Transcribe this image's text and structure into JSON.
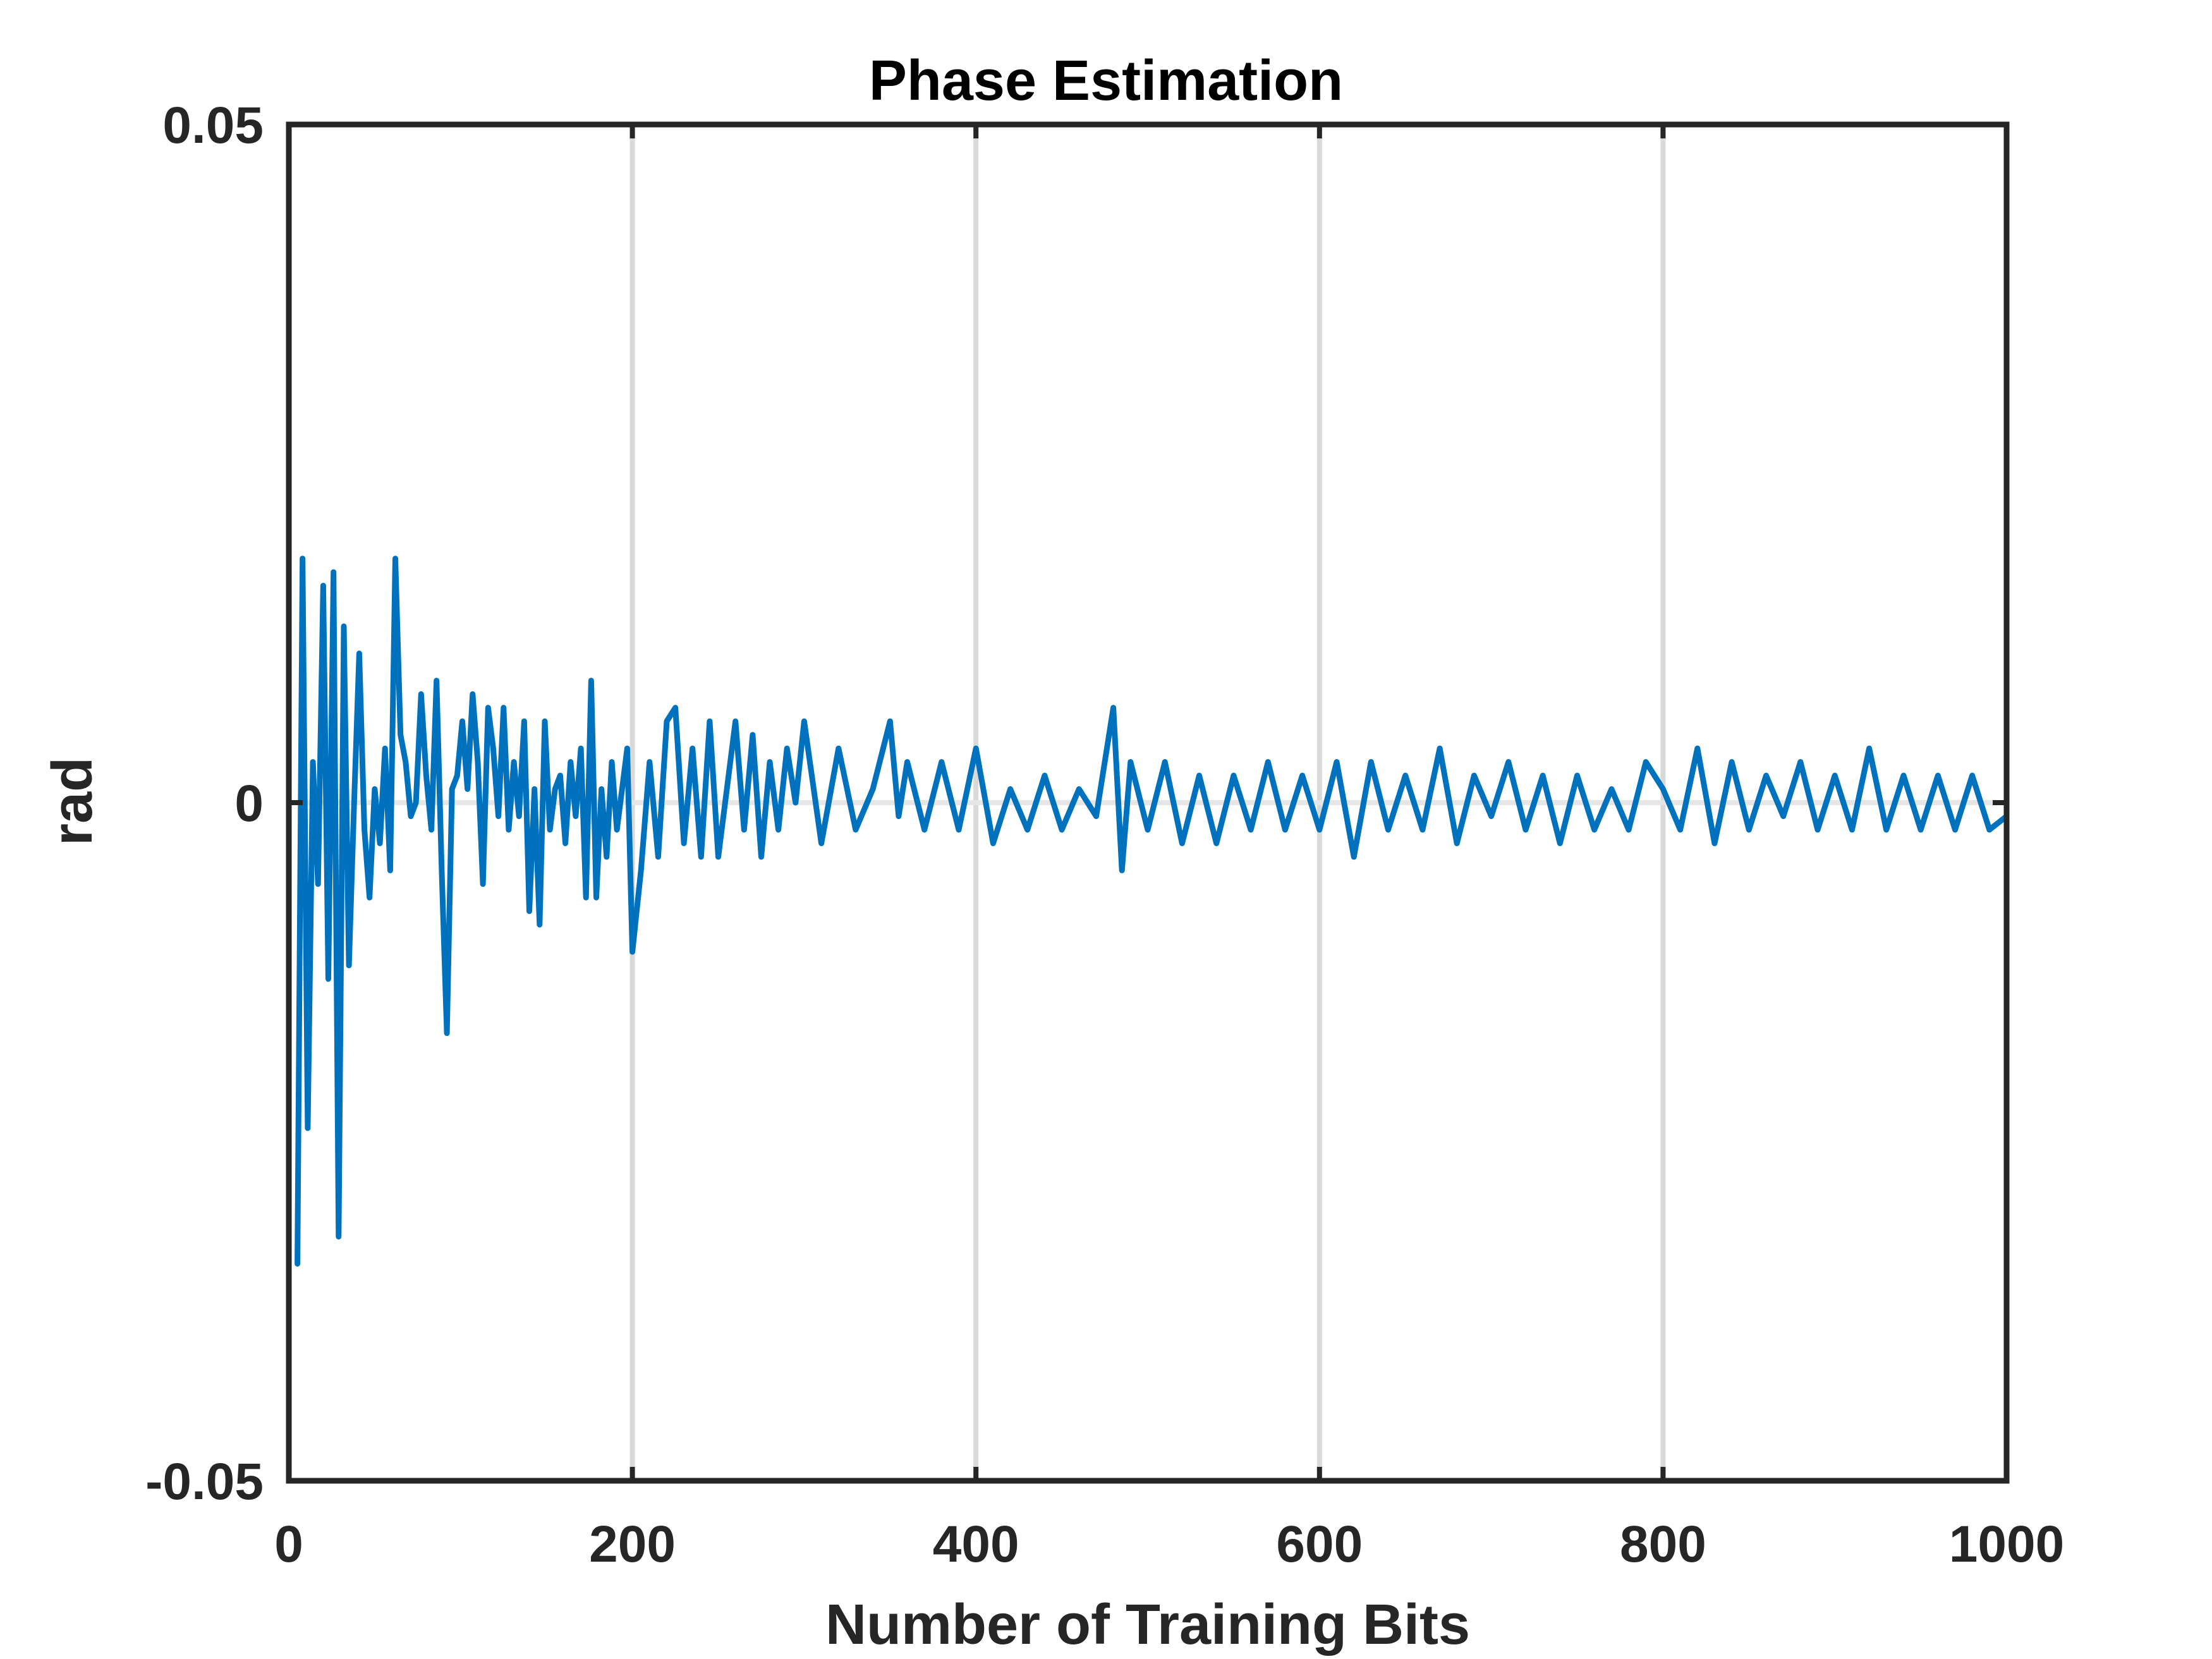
{
  "chart_data": {
    "type": "line",
    "title": "Phase Estimation",
    "xlabel": "Number of Training Bits",
    "ylabel": "rad",
    "xlim": [
      0,
      1000
    ],
    "ylim": [
      -0.05,
      0.05
    ],
    "xticks": [
      "0",
      "200",
      "400",
      "600",
      "800",
      "1000"
    ],
    "yticks": [
      "-0.05",
      "0",
      "0.05"
    ],
    "grid": "vertical",
    "line_color": "#0072BD",
    "grid_color": "#D9D9D9",
    "axis_color": "#262626",
    "x": [
      5,
      8,
      11,
      14,
      17,
      20,
      23,
      26,
      29,
      32,
      35,
      38,
      41,
      44,
      47,
      50,
      53,
      56,
      59,
      62,
      65,
      68,
      71,
      74,
      77,
      80,
      83,
      86,
      89,
      92,
      95,
      98,
      101,
      104,
      107,
      110,
      113,
      116,
      119,
      122,
      125,
      128,
      131,
      134,
      137,
      140,
      143,
      146,
      149,
      152,
      155,
      158,
      161,
      164,
      167,
      170,
      173,
      176,
      179,
      182,
      185,
      188,
      191,
      194,
      197,
      200,
      205,
      210,
      215,
      220,
      225,
      230,
      235,
      240,
      245,
      250,
      255,
      260,
      265,
      270,
      275,
      280,
      285,
      290,
      295,
      300,
      310,
      320,
      330,
      340,
      350,
      355,
      360,
      370,
      380,
      390,
      400,
      410,
      420,
      430,
      440,
      450,
      460,
      470,
      480,
      485,
      490,
      500,
      510,
      520,
      530,
      540,
      550,
      560,
      570,
      580,
      590,
      600,
      610,
      620,
      630,
      640,
      650,
      660,
      670,
      680,
      690,
      700,
      710,
      720,
      730,
      740,
      750,
      760,
      770,
      780,
      790,
      800,
      810,
      820,
      830,
      840,
      850,
      860,
      870,
      880,
      890,
      900,
      910,
      920,
      930,
      940,
      950,
      960,
      970,
      980,
      990,
      1000
    ],
    "y": [
      -0.034,
      0.018,
      -0.024,
      0.003,
      -0.006,
      0.016,
      -0.013,
      0.017,
      -0.032,
      0.013,
      -0.012,
      0.0,
      0.011,
      -0.002,
      -0.007,
      0.001,
      -0.003,
      0.004,
      -0.005,
      0.018,
      0.005,
      0.003,
      -0.001,
      0.0,
      0.008,
      0.002,
      -0.002,
      0.009,
      -0.005,
      -0.017,
      0.001,
      0.002,
      0.006,
      0.001,
      0.008,
      0.003,
      -0.006,
      0.007,
      0.004,
      -0.001,
      0.007,
      -0.002,
      0.003,
      -0.001,
      0.006,
      -0.008,
      0.001,
      -0.009,
      0.006,
      -0.002,
      0.001,
      0.002,
      -0.003,
      0.003,
      -0.001,
      0.004,
      -0.007,
      0.009,
      -0.007,
      0.001,
      -0.004,
      0.003,
      -0.002,
      0.001,
      0.004,
      -0.011,
      -0.005,
      0.003,
      -0.004,
      0.006,
      0.007,
      -0.003,
      0.004,
      -0.004,
      0.006,
      -0.004,
      0.001,
      0.006,
      -0.002,
      0.005,
      -0.004,
      0.003,
      -0.002,
      0.004,
      0.0,
      0.006,
      -0.003,
      0.004,
      -0.002,
      0.001,
      0.006,
      -0.001,
      0.003,
      -0.002,
      0.003,
      -0.002,
      0.004,
      -0.003,
      0.001,
      -0.002,
      0.002,
      -0.002,
      0.001,
      -0.001,
      0.007,
      -0.005,
      0.003,
      -0.002,
      0.003,
      -0.003,
      0.002,
      -0.003,
      0.002,
      -0.002,
      0.003,
      -0.002,
      0.002,
      -0.002,
      0.003,
      -0.004,
      0.003,
      -0.002,
      0.002,
      -0.002,
      0.004,
      -0.003,
      0.002,
      -0.001,
      0.003,
      -0.002,
      0.002,
      -0.003,
      0.002,
      -0.002,
      0.001,
      -0.002,
      0.003,
      0.001,
      -0.002,
      0.004,
      -0.003,
      0.003,
      -0.002,
      0.002,
      -0.001,
      0.003,
      -0.002,
      0.002,
      -0.002,
      0.004,
      -0.002,
      0.002,
      -0.002,
      0.002,
      -0.002,
      0.002,
      -0.002,
      -0.001
    ]
  }
}
